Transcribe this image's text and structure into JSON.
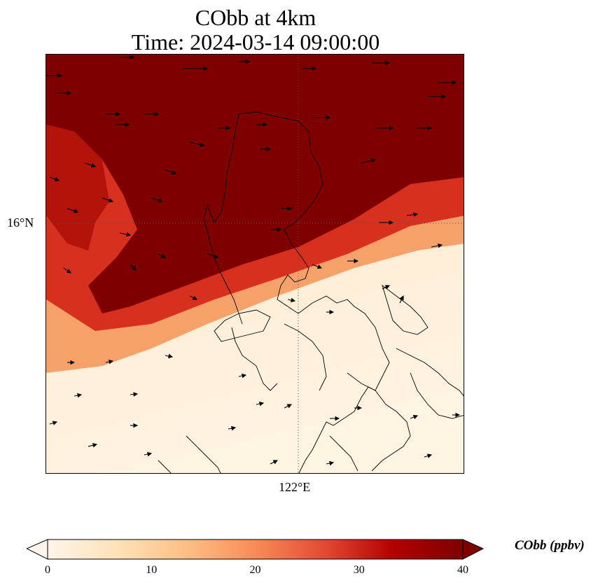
{
  "title": {
    "line1": "CObb at 4km",
    "line2": "Time: 2024-03-14 09:00:00"
  },
  "axes": {
    "lat_tick": "16°N",
    "lon_tick": "122°E",
    "gridlines": "dotted"
  },
  "colorbar": {
    "label": "CObb (ppbv)",
    "ticks": [
      "0",
      "10",
      "20",
      "30",
      "40"
    ],
    "range": [
      0,
      40
    ],
    "extend": "both",
    "colormap": [
      "#fff5e8",
      "#fee2b8",
      "#fdbf84",
      "#f98b58",
      "#e34a33",
      "#b30000",
      "#7f0000"
    ]
  },
  "colors": {
    "high": "#7f0000",
    "plume_edge": "#fdbf84",
    "low": "#fff0d8",
    "coastline": "#000000"
  }
}
